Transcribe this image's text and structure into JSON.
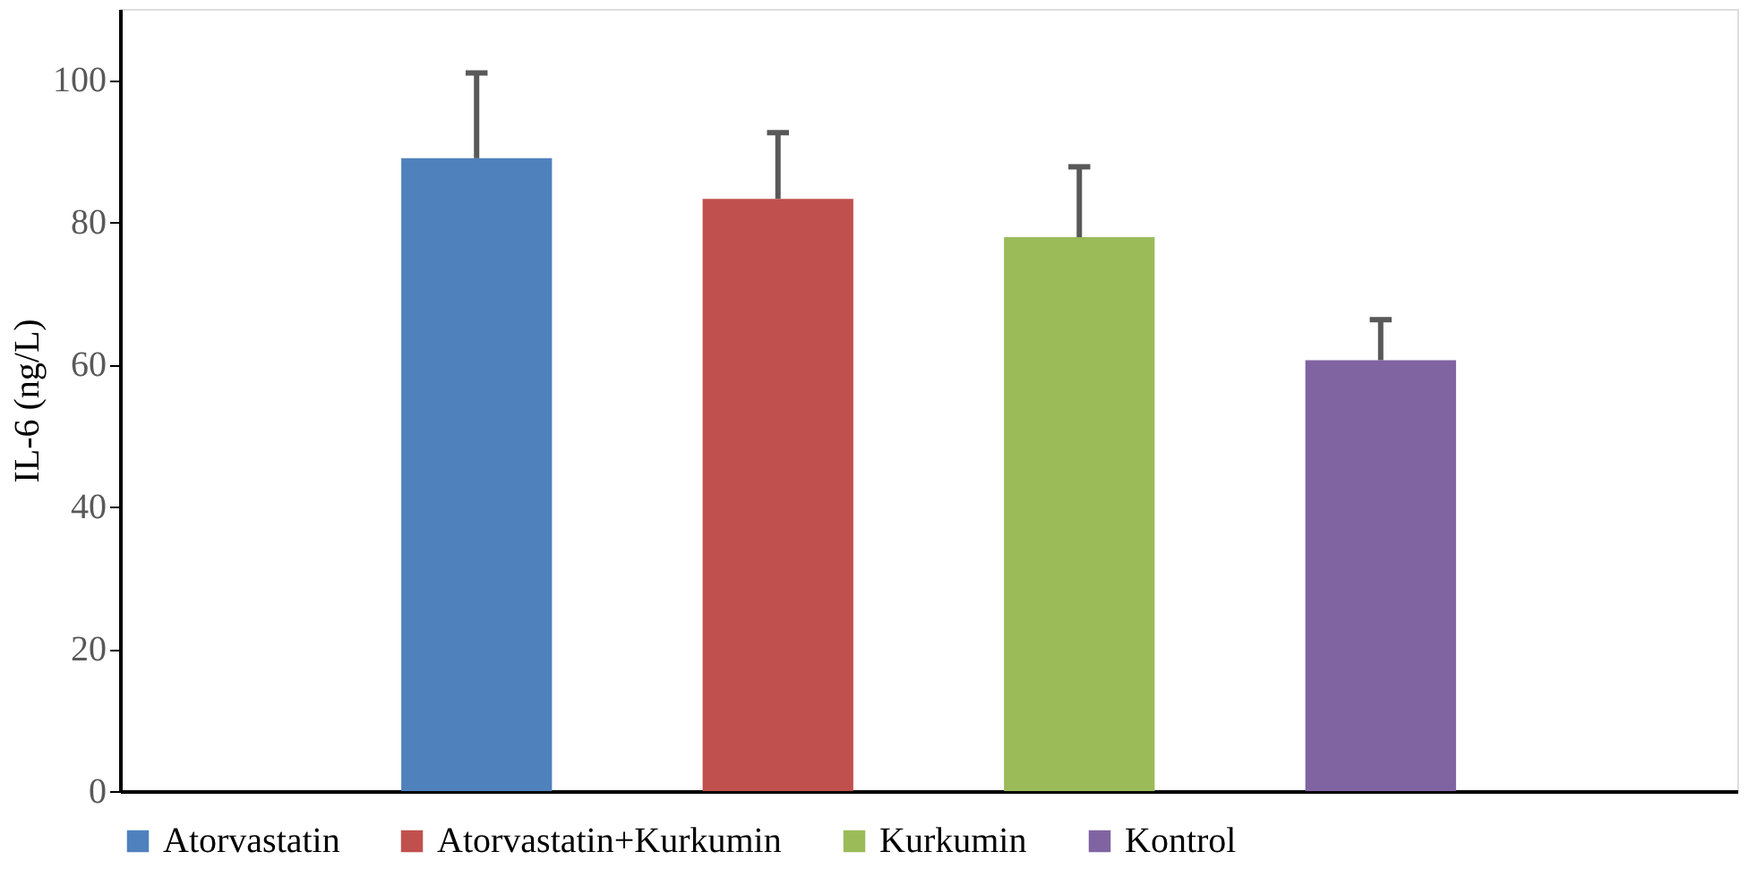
{
  "chart_data": {
    "type": "bar",
    "ylabel": "IL-6 (ng/L)",
    "categories": [
      null
    ],
    "series": [
      {
        "name": "Atorvastatin",
        "color": "#4f81bd",
        "values": [
          89
        ],
        "errors": [
          [
            89,
            101
          ]
        ]
      },
      {
        "name": "Atorvastatin+Kurkumin",
        "color": "#c0504d",
        "values": [
          83.3
        ],
        "errors": [
          [
            83.3,
            92.6
          ]
        ]
      },
      {
        "name": "Kurkumin",
        "color": "#9bbb59",
        "values": [
          77.9
        ],
        "errors": [
          [
            77.9,
            87.8
          ]
        ]
      },
      {
        "name": "Kontrol",
        "color": "#8064a2",
        "values": [
          60.6
        ],
        "errors": [
          [
            60.6,
            66.3
          ]
        ]
      }
    ],
    "ylim": [
      0,
      110
    ],
    "yticks": [
      0,
      20,
      40,
      60,
      80,
      100
    ],
    "grid": false,
    "legend": "bottom",
    "tick_labels": "y"
  }
}
